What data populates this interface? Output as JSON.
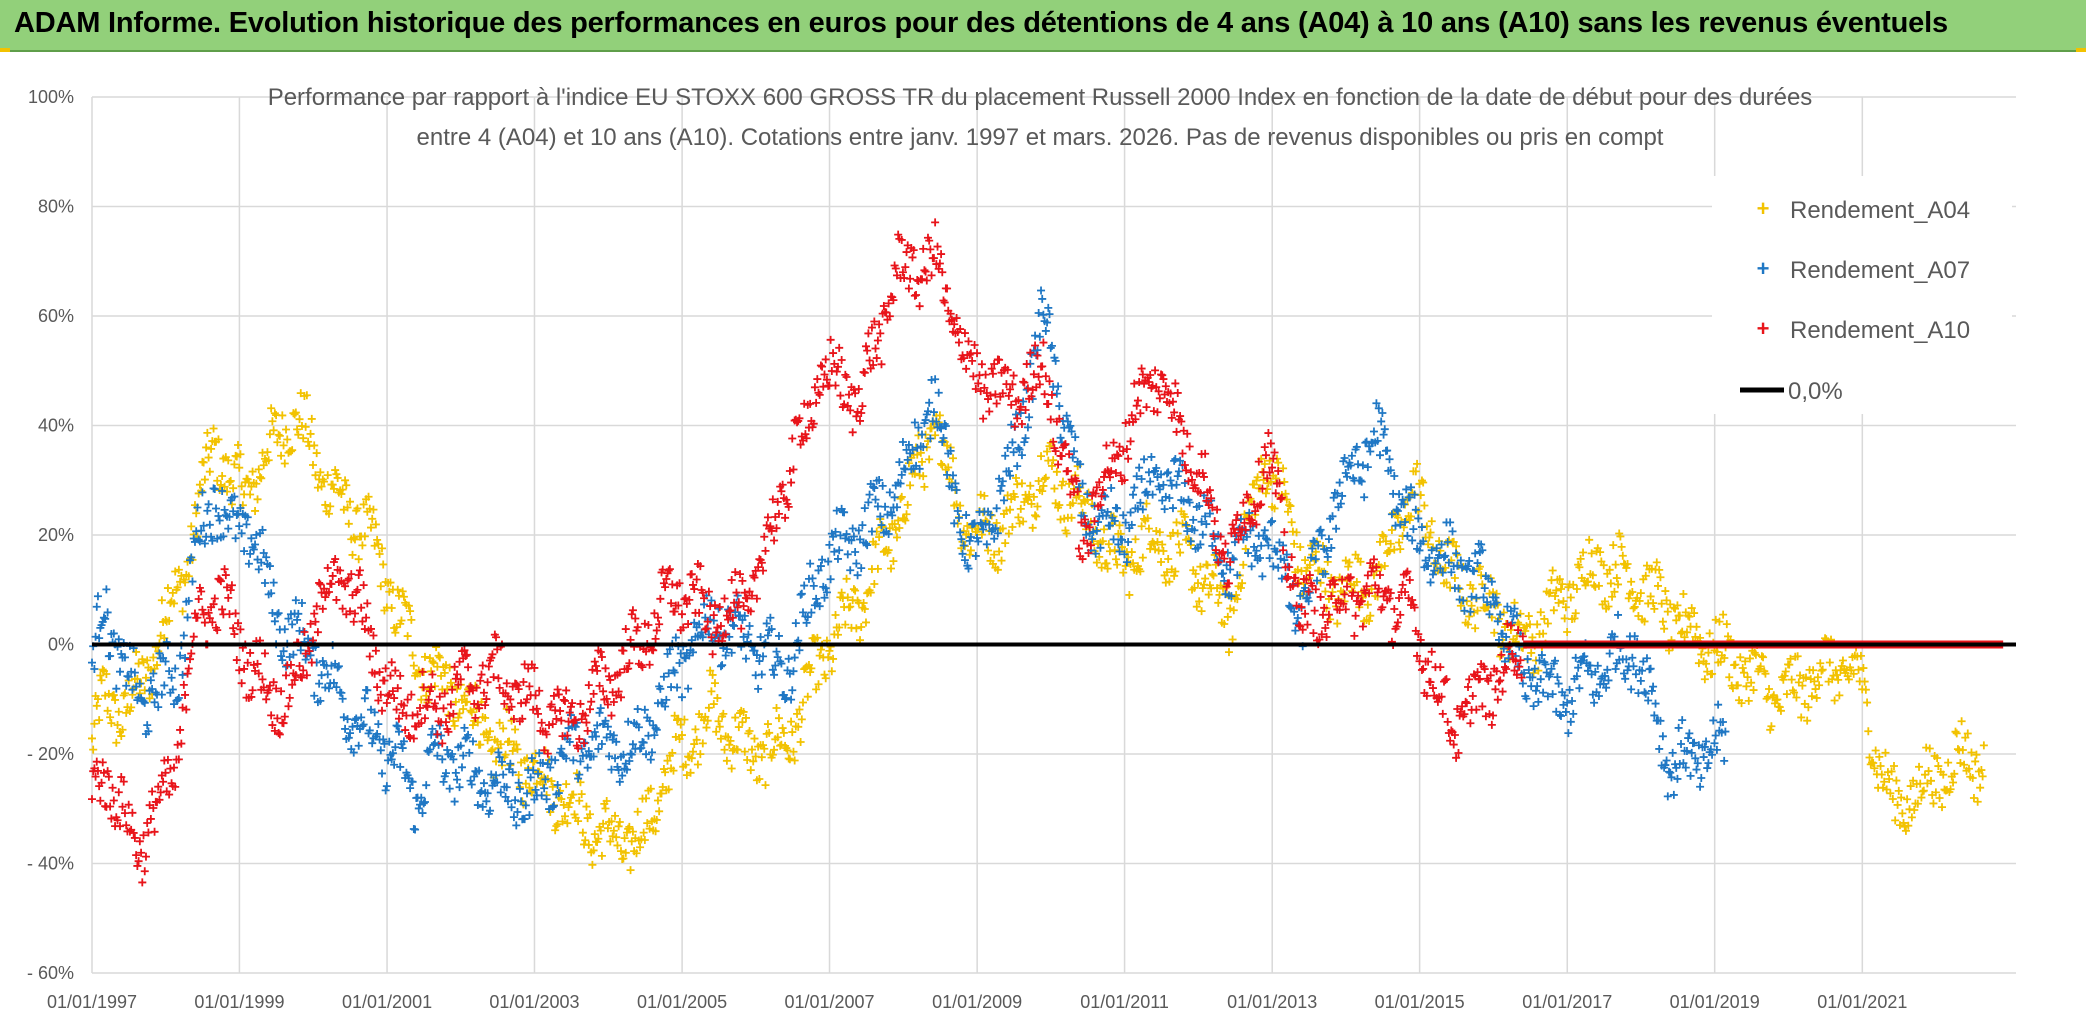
{
  "header": {
    "title": "ADAM Informe. Evolution historique des performances en euros pour des détentions de 4 ans (A04) à 10 ans (A10) sans les revenus éventuels"
  },
  "colors": {
    "banner": "#92d07a",
    "a04": "#f2c200",
    "a07": "#1f77c4",
    "a10": "#e8141a",
    "zero_line": "#000000",
    "grid": "#d9d9d9"
  },
  "chart_data": {
    "type": "scatter",
    "title_line1": "Performance par rapport à l'indice EU STOXX 600 GROSS TR  du placement Russell 2000 Index en fonction de la date de début pour des durées",
    "title_line2": "entre 4 (A04) et 10 ans (A10). Cotations entre janv. 1997 et mars. 2026. Pas de revenus disponibles ou pris en compt",
    "x_range": [
      "1997-01-01",
      "2023-02-01"
    ],
    "y_range": [
      -60,
      100
    ],
    "y_ticks": [
      {
        "value": 100,
        "label": "100%"
      },
      {
        "value": 80,
        "label": "80%"
      },
      {
        "value": 60,
        "label": "60%"
      },
      {
        "value": 40,
        "label": "40%"
      },
      {
        "value": 20,
        "label": "20%"
      },
      {
        "value": 0,
        "label": "0%"
      },
      {
        "value": -20,
        "label": "- 20%"
      },
      {
        "value": -40,
        "label": "- 40%"
      },
      {
        "value": -60,
        "label": "- 60%"
      }
    ],
    "x_ticks": [
      {
        "date": "1997-01-01",
        "label": "01/01/1997"
      },
      {
        "date": "1999-01-01",
        "label": "01/01/1999"
      },
      {
        "date": "2001-01-01",
        "label": "01/01/2001"
      },
      {
        "date": "2003-01-01",
        "label": "01/01/2003"
      },
      {
        "date": "2005-01-01",
        "label": "01/01/2005"
      },
      {
        "date": "2007-01-01",
        "label": "01/01/2007"
      },
      {
        "date": "2009-01-01",
        "label": "01/01/2009"
      },
      {
        "date": "2011-01-01",
        "label": "01/01/2011"
      },
      {
        "date": "2013-01-01",
        "label": "01/01/2013"
      },
      {
        "date": "2015-01-01",
        "label": "01/01/2015"
      },
      {
        "date": "2017-01-01",
        "label": "01/01/2017"
      },
      {
        "date": "2019-01-01",
        "label": "01/01/2019"
      },
      {
        "date": "2021-01-01",
        "label": "01/01/2021"
      }
    ],
    "grid": true,
    "legend_position": "top-right",
    "legend": [
      {
        "name": "Rendement_A04",
        "series": "A04"
      },
      {
        "name": "Rendement_A07",
        "series": "A07"
      },
      {
        "name": "Rendement_A10",
        "series": "A10"
      },
      {
        "name": "0,0%",
        "series": "zero"
      }
    ],
    "series": [
      {
        "name": "Rendement_A04",
        "marker": "+",
        "points": [
          [
            "1997-01-01",
            -18
          ],
          [
            "1997-03-01",
            -10
          ],
          [
            "1997-06-01",
            -12
          ],
          [
            "1997-09-01",
            -8
          ],
          [
            "1997-12-01",
            2
          ],
          [
            "1998-03-01",
            10
          ],
          [
            "1998-06-01",
            22
          ],
          [
            "1998-09-01",
            38
          ],
          [
            "1998-12-01",
            28
          ],
          [
            "1999-03-01",
            30
          ],
          [
            "1999-06-01",
            35
          ],
          [
            "1999-09-01",
            42
          ],
          [
            "1999-12-01",
            38
          ],
          [
            "2000-03-01",
            30
          ],
          [
            "2000-06-01",
            25
          ],
          [
            "2000-09-01",
            22
          ],
          [
            "2000-12-01",
            15
          ],
          [
            "2001-03-01",
            5
          ],
          [
            "2001-06-01",
            -2
          ],
          [
            "2001-09-01",
            -6
          ],
          [
            "2002-01-01",
            -10
          ],
          [
            "2002-06-01",
            -18
          ],
          [
            "2002-12-01",
            -22
          ],
          [
            "2003-06-01",
            -28
          ],
          [
            "2003-12-01",
            -35
          ],
          [
            "2004-06-01",
            -36
          ],
          [
            "2004-12-01",
            -20
          ],
          [
            "2005-06-01",
            -12
          ],
          [
            "2005-12-01",
            -20
          ],
          [
            "2006-06-01",
            -18
          ],
          [
            "2006-12-01",
            -2
          ],
          [
            "2007-06-01",
            8
          ],
          [
            "2007-12-01",
            22
          ],
          [
            "2008-06-01",
            40
          ],
          [
            "2008-12-01",
            20
          ],
          [
            "2009-06-01",
            22
          ],
          [
            "2009-12-01",
            32
          ],
          [
            "2010-06-01",
            25
          ],
          [
            "2010-12-01",
            15
          ],
          [
            "2011-06-01",
            20
          ],
          [
            "2011-12-01",
            15
          ],
          [
            "2012-06-01",
            5
          ],
          [
            "2012-12-01",
            35
          ],
          [
            "2013-06-01",
            15
          ],
          [
            "2013-12-01",
            10
          ],
          [
            "2014-06-01",
            12
          ],
          [
            "2014-12-01",
            28
          ],
          [
            "2015-06-01",
            12
          ],
          [
            "2015-12-01",
            8
          ],
          [
            "2016-06-01",
            0
          ],
          [
            "2016-12-01",
            8
          ],
          [
            "2017-06-01",
            15
          ],
          [
            "2017-12-01",
            12
          ],
          [
            "2018-06-01",
            5
          ],
          [
            "2018-12-01",
            0
          ],
          [
            "2019-06-01",
            -5
          ],
          [
            "2019-12-01",
            -10
          ],
          [
            "2020-06-01",
            -5
          ],
          [
            "2020-12-01",
            -5
          ],
          [
            "2021-06-01",
            -30
          ],
          [
            "2021-12-01",
            -25
          ],
          [
            "2022-06-01",
            -20
          ],
          [
            "2022-09-01",
            -22
          ]
        ]
      },
      {
        "name": "Rendement_A07",
        "marker": "+",
        "points": [
          [
            "1997-01-01",
            -5
          ],
          [
            "1997-03-01",
            8
          ],
          [
            "1997-06-01",
            -5
          ],
          [
            "1997-09-01",
            -10
          ],
          [
            "1997-12-01",
            -8
          ],
          [
            "1998-03-01",
            -5
          ],
          [
            "1998-06-01",
            18
          ],
          [
            "1998-09-01",
            28
          ],
          [
            "1998-12-01",
            20
          ],
          [
            "1999-03-01",
            22
          ],
          [
            "1999-06-01",
            8
          ],
          [
            "1999-09-01",
            2
          ],
          [
            "1999-12-01",
            0
          ],
          [
            "2000-03-01",
            -5
          ],
          [
            "2000-06-01",
            -10
          ],
          [
            "2000-09-01",
            -15
          ],
          [
            "2000-12-01",
            -18
          ],
          [
            "2001-03-01",
            -22
          ],
          [
            "2001-06-01",
            -28
          ],
          [
            "2001-09-01",
            -20
          ],
          [
            "2002-01-01",
            -22
          ],
          [
            "2002-06-01",
            -25
          ],
          [
            "2002-12-01",
            -28
          ],
          [
            "2003-06-01",
            -20
          ],
          [
            "2003-12-01",
            -18
          ],
          [
            "2004-06-01",
            -18
          ],
          [
            "2004-12-01",
            -5
          ],
          [
            "2005-06-01",
            5
          ],
          [
            "2005-12-01",
            0
          ],
          [
            "2006-06-01",
            -5
          ],
          [
            "2006-12-01",
            15
          ],
          [
            "2007-06-01",
            20
          ],
          [
            "2007-12-01",
            28
          ],
          [
            "2008-06-01",
            45
          ],
          [
            "2008-12-01",
            15
          ],
          [
            "2009-06-01",
            30
          ],
          [
            "2009-12-01",
            60
          ],
          [
            "2010-06-01",
            25
          ],
          [
            "2010-12-01",
            20
          ],
          [
            "2011-06-01",
            30
          ],
          [
            "2011-12-01",
            25
          ],
          [
            "2012-06-01",
            15
          ],
          [
            "2012-12-01",
            20
          ],
          [
            "2013-06-01",
            5
          ],
          [
            "2013-12-01",
            28
          ],
          [
            "2014-06-01",
            38
          ],
          [
            "2014-12-01",
            20
          ],
          [
            "2015-06-01",
            15
          ],
          [
            "2015-12-01",
            10
          ],
          [
            "2016-06-01",
            -5
          ],
          [
            "2016-12-01",
            -10
          ],
          [
            "2017-06-01",
            -5
          ],
          [
            "2017-12-01",
            0
          ],
          [
            "2018-06-01",
            -22
          ],
          [
            "2018-12-01",
            -20
          ],
          [
            "2019-03-01",
            -18
          ]
        ]
      },
      {
        "name": "Rendement_A10",
        "marker": "+",
        "points": [
          [
            "1997-01-01",
            -28
          ],
          [
            "1997-03-01",
            -22
          ],
          [
            "1997-06-01",
            -32
          ],
          [
            "1997-09-01",
            -36
          ],
          [
            "1997-12-01",
            -30
          ],
          [
            "1998-03-01",
            -20
          ],
          [
            "1998-06-01",
            5
          ],
          [
            "1998-09-01",
            8
          ],
          [
            "1998-12-01",
            5
          ],
          [
            "1999-03-01",
            -5
          ],
          [
            "1999-06-01",
            -8
          ],
          [
            "1999-09-01",
            -10
          ],
          [
            "1999-12-01",
            0
          ],
          [
            "2000-03-01",
            10
          ],
          [
            "2000-06-01",
            12
          ],
          [
            "2000-09-01",
            5
          ],
          [
            "2000-12-01",
            -5
          ],
          [
            "2001-03-01",
            -12
          ],
          [
            "2001-06-01",
            -10
          ],
          [
            "2001-09-01",
            -12
          ],
          [
            "2002-01-01",
            -8
          ],
          [
            "2002-06-01",
            -5
          ],
          [
            "2002-12-01",
            -10
          ],
          [
            "2003-06-01",
            -15
          ],
          [
            "2003-12-01",
            -8
          ],
          [
            "2004-06-01",
            0
          ],
          [
            "2004-12-01",
            10
          ],
          [
            "2005-06-01",
            5
          ],
          [
            "2005-12-01",
            8
          ],
          [
            "2006-06-01",
            30
          ],
          [
            "2006-12-01",
            50
          ],
          [
            "2007-06-01",
            45
          ],
          [
            "2007-12-01",
            68
          ],
          [
            "2008-06-01",
            70
          ],
          [
            "2008-12-01",
            50
          ],
          [
            "2009-06-01",
            45
          ],
          [
            "2009-12-01",
            50
          ],
          [
            "2010-06-01",
            20
          ],
          [
            "2010-12-01",
            35
          ],
          [
            "2011-06-01",
            50
          ],
          [
            "2011-12-01",
            35
          ],
          [
            "2012-06-01",
            15
          ],
          [
            "2012-12-01",
            35
          ],
          [
            "2013-06-01",
            5
          ],
          [
            "2013-12-01",
            8
          ],
          [
            "2014-06-01",
            10
          ],
          [
            "2014-12-01",
            5
          ],
          [
            "2015-06-01",
            -15
          ],
          [
            "2015-12-01",
            -8
          ],
          [
            "2016-06-01",
            0
          ],
          [
            "2017-01-01",
            0
          ],
          [
            "2019-01-01",
            0
          ],
          [
            "2021-01-01",
            0
          ],
          [
            "2022-12-01",
            0
          ]
        ]
      }
    ],
    "reference_line": {
      "name": "0,0%",
      "value": 0
    }
  }
}
